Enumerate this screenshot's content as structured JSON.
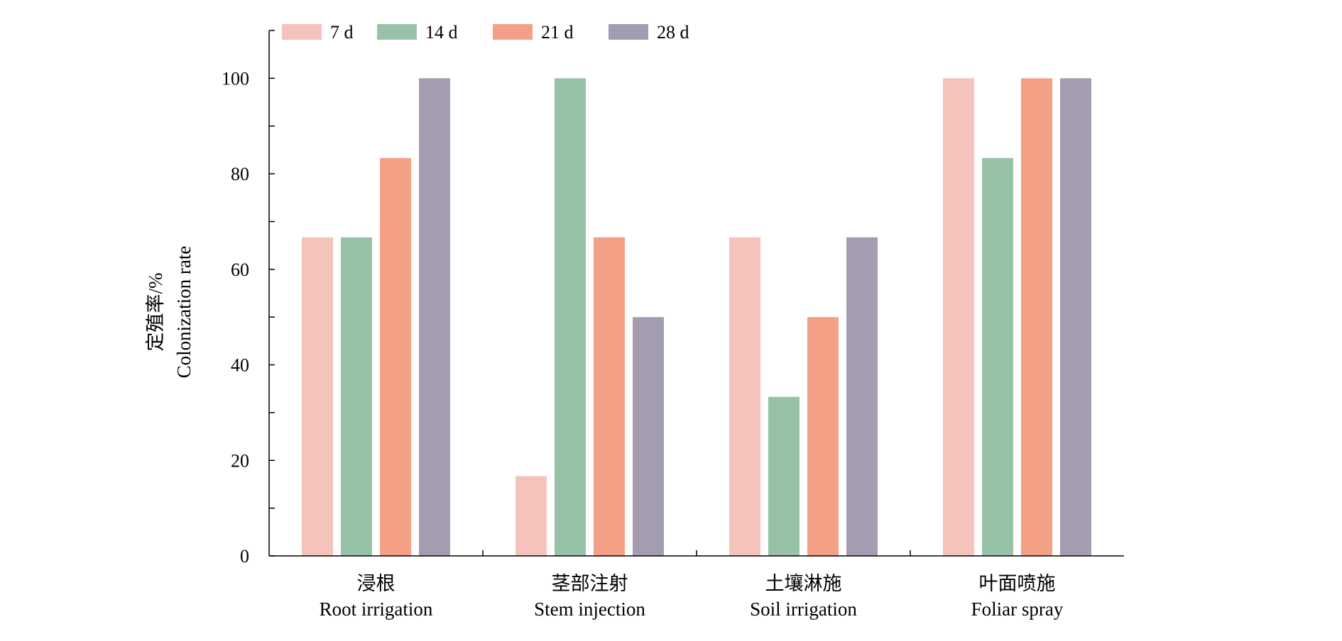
{
  "chart_data": {
    "type": "bar",
    "categories": [
      {
        "cn": "浸根",
        "en": "Root irrigation"
      },
      {
        "cn": "茎部注射",
        "en": "Stem injection"
      },
      {
        "cn": "土壤淋施",
        "en": "Soil irrigation"
      },
      {
        "cn": "叶面喷施",
        "en": "Foliar spray"
      }
    ],
    "series": [
      {
        "name": "7 d",
        "color": "#f4c3bb",
        "values": [
          66.7,
          16.7,
          66.7,
          100
        ]
      },
      {
        "name": "14 d",
        "color": "#98c2a7",
        "values": [
          66.7,
          100,
          33.3,
          83.3
        ]
      },
      {
        "name": "21 d",
        "color": "#f4a086",
        "values": [
          83.3,
          66.7,
          50,
          100
        ]
      },
      {
        "name": "28 d",
        "color": "#a49cb1",
        "values": [
          100,
          50,
          66.7,
          100
        ]
      }
    ],
    "ylabel_cn": "定殖率/%",
    "ylabel_en": "Colonization rate",
    "ylim": [
      0,
      110
    ],
    "yticks": [
      0,
      20,
      40,
      60,
      80,
      100
    ],
    "legend_position": "top-left",
    "grid": false
  }
}
